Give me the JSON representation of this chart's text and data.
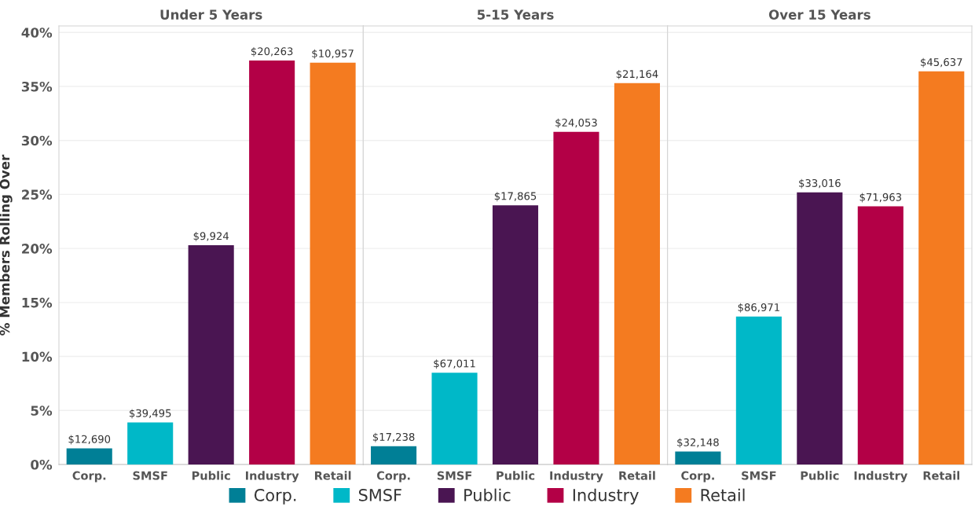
{
  "chart_data": [
    {
      "type": "bar",
      "title": "Under 5 Years",
      "ylabel": "% Members Rolling Over",
      "categories": [
        "Corp.",
        "SMSF",
        "Public",
        "Industry",
        "Retail"
      ],
      "series": [
        {
          "name": "Corp.",
          "color": "#007f96",
          "values": [
            1.5,
            null,
            null,
            null,
            null
          ]
        },
        {
          "name": "SMSF",
          "color": "#00b8c8",
          "values": [
            null,
            3.9,
            null,
            null,
            null
          ]
        },
        {
          "name": "Public",
          "color": "#4a1552",
          "values": [
            null,
            null,
            20.3,
            null,
            null
          ]
        },
        {
          "name": "Industry",
          "color": "#b30046",
          "values": [
            null,
            null,
            null,
            37.4,
            null
          ]
        },
        {
          "name": "Retail",
          "color": "#f47b20",
          "values": [
            null,
            null,
            null,
            null,
            37.2
          ]
        }
      ],
      "annotations": [
        {
          "text": "$12,690",
          "x": "Corp.",
          "y": 1.5
        },
        {
          "text": "$39,495",
          "x": "SMSF",
          "y": 3.9
        },
        {
          "text": "$9,924",
          "x": "Public",
          "y": 20.3
        },
        {
          "text": "$20,263",
          "x": "Industry",
          "y": 37.4
        },
        {
          "text": "$10,957",
          "x": "Retail",
          "y": 37.2
        }
      ],
      "ylim": [
        0,
        40.6
      ],
      "yticks": [
        {
          "value": 0,
          "label": "0%"
        },
        {
          "value": 5,
          "label": "5%"
        },
        {
          "value": 10,
          "label": "10%"
        },
        {
          "value": 15,
          "label": "15%"
        },
        {
          "value": 20,
          "label": "20%"
        },
        {
          "value": 25,
          "label": "25%"
        },
        {
          "value": 30,
          "label": "30%"
        },
        {
          "value": 35,
          "label": "35%"
        },
        {
          "value": 40,
          "label": "40%"
        }
      ],
      "grid": "y",
      "legend": "bottom"
    },
    {
      "type": "bar",
      "title": "5-15 Years",
      "categories": [
        "Corp.",
        "SMSF",
        "Public",
        "Industry",
        "Retail"
      ],
      "series": [
        {
          "color": "#007f96",
          "values": [
            1.7,
            null,
            null,
            null,
            null
          ]
        },
        {
          "color": "#00b8c8",
          "values": [
            null,
            8.5,
            null,
            null,
            null
          ]
        },
        {
          "color": "#4a1552",
          "values": [
            null,
            null,
            24.0,
            null,
            null
          ]
        },
        {
          "color": "#b30046",
          "values": [
            null,
            null,
            null,
            30.8,
            null
          ]
        },
        {
          "color": "#f47b20",
          "values": [
            null,
            null,
            null,
            null,
            35.3
          ]
        }
      ],
      "annotations": [
        {
          "text": "$17,238",
          "x": "Corp.",
          "y": 1.7
        },
        {
          "text": "$67,011",
          "x": "SMSF",
          "y": 8.5
        },
        {
          "text": "$17,865",
          "x": "Public",
          "y": 24.0
        },
        {
          "text": "$24,053",
          "x": "Industry",
          "y": 30.8
        },
        {
          "text": "$21,164",
          "x": "Retail",
          "y": 35.3
        }
      ],
      "ylim": [
        0,
        40.6
      ],
      "yticks": [
        0,
        5,
        10,
        15,
        20,
        25,
        30,
        35,
        40
      ],
      "grid": "y",
      "tick_labels": "x"
    },
    {
      "type": "bar",
      "title": "Over 15 Years",
      "categories": [
        "Corp.",
        "SMSF",
        "Public",
        "Industry",
        "Retail"
      ],
      "series": [
        {
          "color": "#007f96",
          "values": [
            1.2,
            null,
            null,
            null,
            null
          ]
        },
        {
          "color": "#00b8c8",
          "values": [
            null,
            13.7,
            null,
            null,
            null
          ]
        },
        {
          "color": "#4a1552",
          "values": [
            null,
            null,
            25.2,
            null,
            null
          ]
        },
        {
          "color": "#b30046",
          "values": [
            null,
            null,
            null,
            23.9,
            null
          ]
        },
        {
          "color": "#f47b20",
          "values": [
            null,
            null,
            null,
            null,
            36.4
          ]
        }
      ],
      "annotations": [
        {
          "text": "$32,148",
          "x": "Corp.",
          "y": 1.2
        },
        {
          "text": "$86,971",
          "x": "SMSF",
          "y": 13.7
        },
        {
          "text": "$33,016",
          "x": "Public",
          "y": 25.2
        },
        {
          "text": "$71,963",
          "x": "Industry",
          "y": 23.9
        },
        {
          "text": "$45,637",
          "x": "Retail",
          "y": 36.4
        }
      ],
      "ylim": [
        0,
        40.6
      ],
      "yticks": [
        0,
        5,
        10,
        15,
        20,
        25,
        30,
        35,
        40
      ],
      "grid": "y",
      "tick_labels": "x"
    }
  ]
}
